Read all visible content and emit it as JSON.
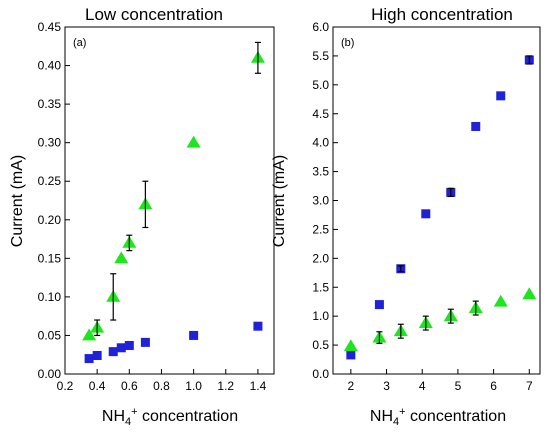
{
  "colors": {
    "square_series": "#1f22d6",
    "triangle_series": "#1ee61e",
    "error_bar": "#000000"
  },
  "chart_data": [
    {
      "type": "scatter",
      "title": "Low concentration",
      "panel_tag": "(a)",
      "xlabel": "NH4+ concentration",
      "ylabel": "Current (mA)",
      "xlim": [
        0.2,
        1.5
      ],
      "ylim": [
        0.0,
        0.45
      ],
      "x_ticks": [
        "0.2",
        "0.4",
        "0.6",
        "0.8",
        "1.0",
        "1.2",
        "1.4"
      ],
      "y_ticks": [
        "0.00",
        "0.05",
        "0.10",
        "0.15",
        "0.20",
        "0.25",
        "0.30",
        "0.35",
        "0.40",
        "0.45"
      ],
      "grid": false,
      "legend": "none",
      "series": [
        {
          "marker": "square",
          "points": [
            {
              "x": 0.35,
              "y": 0.02
            },
            {
              "x": 0.4,
              "y": 0.024
            },
            {
              "x": 0.5,
              "y": 0.029
            },
            {
              "x": 0.55,
              "y": 0.034
            },
            {
              "x": 0.6,
              "y": 0.037
            },
            {
              "x": 0.7,
              "y": 0.041
            },
            {
              "x": 1.0,
              "y": 0.05
            },
            {
              "x": 1.4,
              "y": 0.062
            }
          ]
        },
        {
          "marker": "triangle",
          "points": [
            {
              "x": 0.35,
              "y": 0.05
            },
            {
              "x": 0.4,
              "y": 0.06,
              "err": 0.01
            },
            {
              "x": 0.5,
              "y": 0.1,
              "err": 0.03
            },
            {
              "x": 0.55,
              "y": 0.15
            },
            {
              "x": 0.6,
              "y": 0.17,
              "err": 0.01
            },
            {
              "x": 0.7,
              "y": 0.22,
              "err": 0.03
            },
            {
              "x": 1.0,
              "y": 0.3
            },
            {
              "x": 1.4,
              "y": 0.41,
              "err": 0.02
            }
          ]
        }
      ]
    },
    {
      "type": "scatter",
      "title": "High concentration",
      "panel_tag": "(b)",
      "xlabel": "NH4+ concentration",
      "ylabel": "Current (mA)",
      "xlim": [
        1.5,
        7.3
      ],
      "ylim": [
        0.0,
        6.0
      ],
      "x_ticks": [
        "2",
        "3",
        "4",
        "5",
        "6",
        "7"
      ],
      "y_ticks": [
        "0.0",
        "0.5",
        "1.0",
        "1.5",
        "2.0",
        "2.5",
        "3.0",
        "3.5",
        "4.0",
        "4.5",
        "5.0",
        "5.5",
        "6.0"
      ],
      "grid": false,
      "legend": "none",
      "series": [
        {
          "marker": "square",
          "points": [
            {
              "x": 2.0,
              "y": 0.33
            },
            {
              "x": 2.8,
              "y": 1.2
            },
            {
              "x": 3.4,
              "y": 1.82,
              "err": 0.05
            },
            {
              "x": 4.1,
              "y": 2.77
            },
            {
              "x": 4.8,
              "y": 3.14,
              "err": 0.07
            },
            {
              "x": 5.5,
              "y": 4.28
            },
            {
              "x": 6.2,
              "y": 4.81
            },
            {
              "x": 7.0,
              "y": 5.43,
              "err": 0.07
            }
          ]
        },
        {
          "marker": "triangle",
          "points": [
            {
              "x": 2.0,
              "y": 0.48
            },
            {
              "x": 2.8,
              "y": 0.63,
              "err": 0.1
            },
            {
              "x": 3.4,
              "y": 0.74,
              "err": 0.12
            },
            {
              "x": 4.1,
              "y": 0.88,
              "err": 0.12
            },
            {
              "x": 4.8,
              "y": 1.0,
              "err": 0.12
            },
            {
              "x": 5.5,
              "y": 1.14,
              "err": 0.12
            },
            {
              "x": 6.2,
              "y": 1.25
            },
            {
              "x": 7.0,
              "y": 1.38
            }
          ]
        }
      ]
    }
  ]
}
